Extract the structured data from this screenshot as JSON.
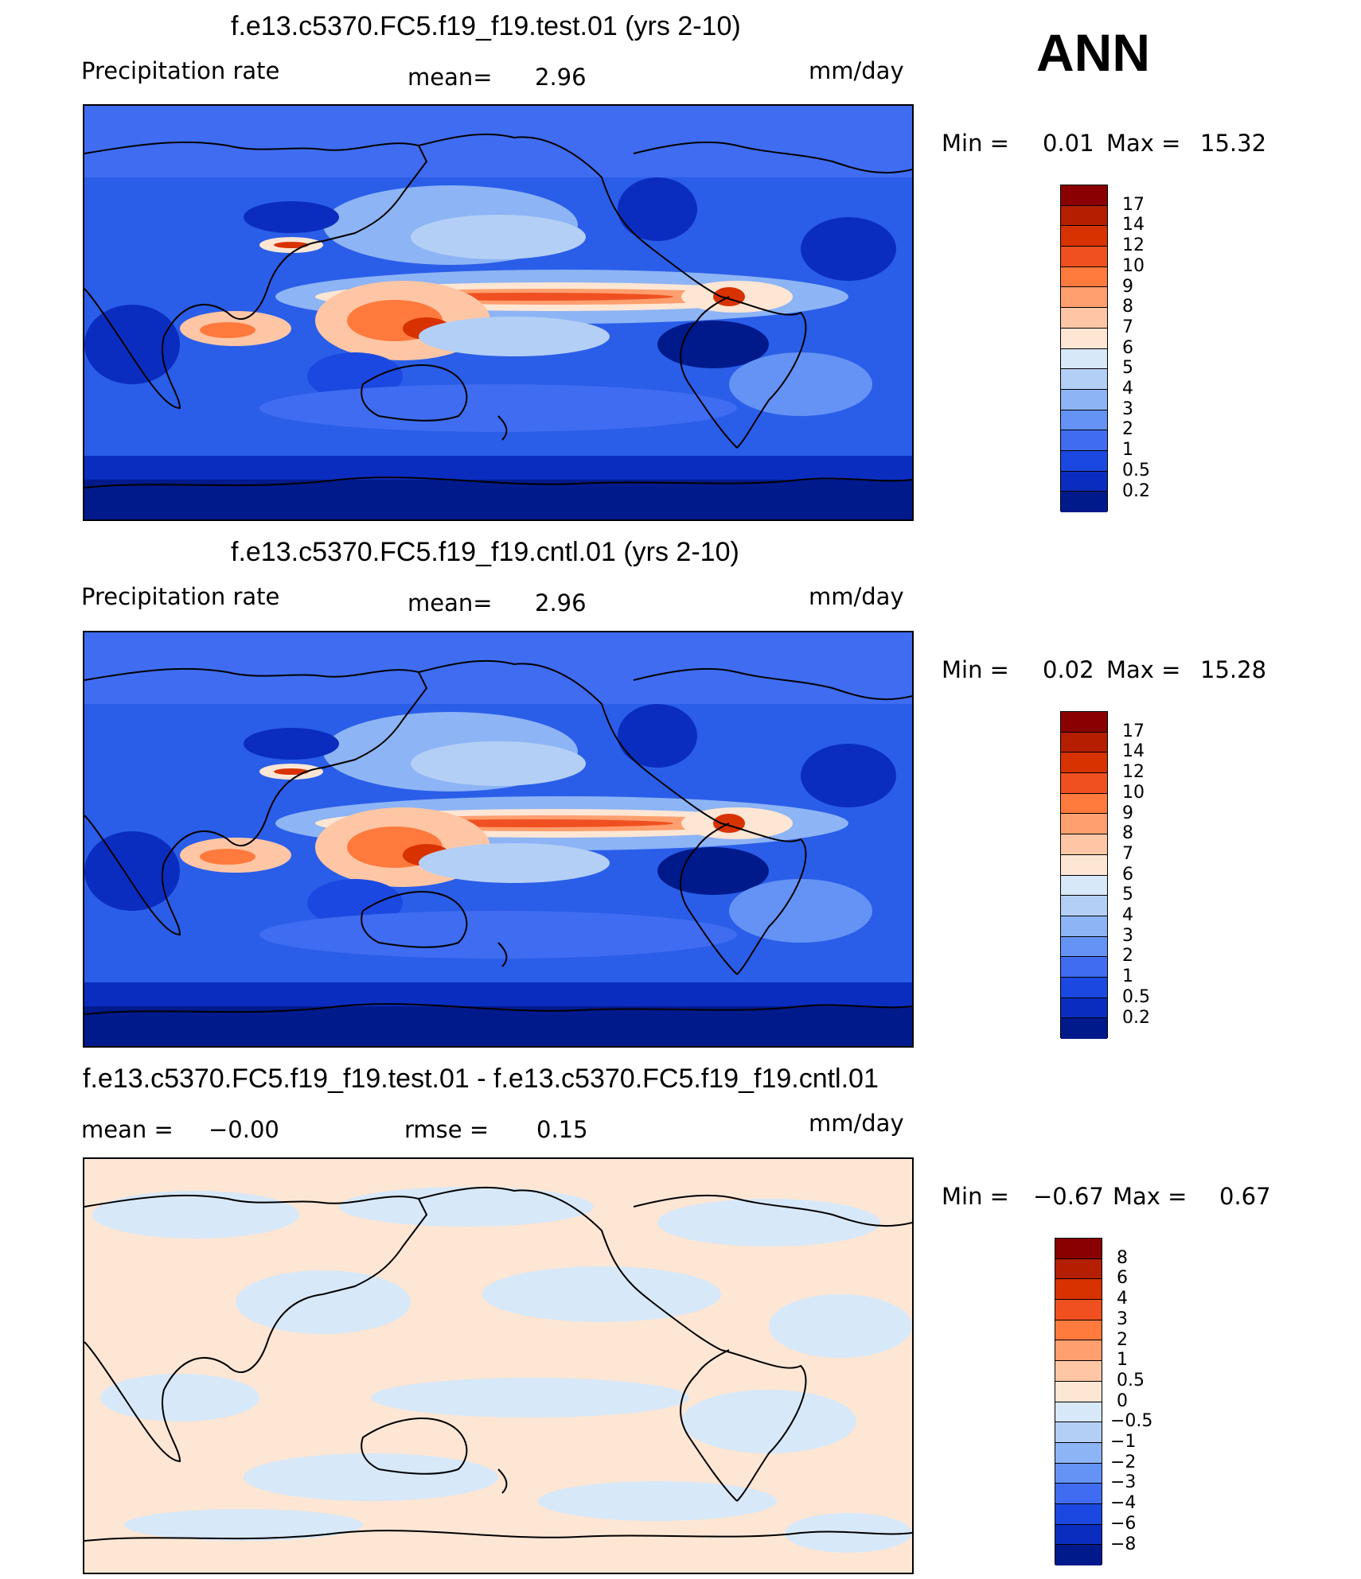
{
  "season": "ANN",
  "panels": [
    {
      "title": "f.e13.c5370.FC5.f19_f19.test.01 (yrs 2-10)",
      "left_label": "Precipitation  rate",
      "center_label": "mean=",
      "center_value": "2.96",
      "units": "mm/day",
      "min_label": "Min  =",
      "min_value": "0.01",
      "max_label": "Max  =",
      "max_value": "15.32"
    },
    {
      "title": "f.e13.c5370.FC5.f19_f19.cntl.01 (yrs 2-10)",
      "left_label": "Precipitation  rate",
      "center_label": "mean=",
      "center_value": "2.96",
      "units": "mm/day",
      "min_label": "Min  =",
      "min_value": "0.02",
      "max_label": "Max  =",
      "max_value": "15.28"
    },
    {
      "title": "f.e13.c5370.FC5.f19_f19.test.01 - f.e13.c5370.FC5.f19_f19.cntl.01",
      "left_label": "mean  =",
      "left_value": "−0.00",
      "center_label": "rmse  =",
      "center_value": "0.15",
      "units": "mm/day",
      "min_label": "Min  =",
      "min_value": "−0.67",
      "max_label": "Max  =",
      "max_value": "0.67"
    }
  ],
  "chart_data": [
    {
      "type": "heatmap",
      "title": "f.e13.c5370.FC5.f19_f19.test.01 (yrs 2-10)",
      "variable": "Precipitation rate",
      "units": "mm/day",
      "mean": 2.96,
      "min": 0.01,
      "max": 15.32,
      "colorbar_levels": [
        "17",
        "14",
        "12",
        "10",
        "9",
        "8",
        "7",
        "6",
        "5",
        "4",
        "3",
        "2",
        "1",
        "0.5",
        "0.2"
      ],
      "colorbar_colors": [
        "#8a0000",
        "#b51e00",
        "#d83200",
        "#f05020",
        "#ff7a3c",
        "#ff9e6e",
        "#ffc6a6",
        "#fde6d4",
        "#d7e8f8",
        "#b4cff5",
        "#8db4f5",
        "#6493f5",
        "#3f6cf0",
        "#1b48e0",
        "#0b2dbf",
        "#001a8c"
      ],
      "grid": false
    },
    {
      "type": "heatmap",
      "title": "f.e13.c5370.FC5.f19_f19.cntl.01 (yrs 2-10)",
      "variable": "Precipitation rate",
      "units": "mm/day",
      "mean": 2.96,
      "min": 0.02,
      "max": 15.28,
      "colorbar_levels": [
        "17",
        "14",
        "12",
        "10",
        "9",
        "8",
        "7",
        "6",
        "5",
        "4",
        "3",
        "2",
        "1",
        "0.5",
        "0.2"
      ],
      "colorbar_colors": [
        "#8a0000",
        "#b51e00",
        "#d83200",
        "#f05020",
        "#ff7a3c",
        "#ff9e6e",
        "#ffc6a6",
        "#fde6d4",
        "#d7e8f8",
        "#b4cff5",
        "#8db4f5",
        "#6493f5",
        "#3f6cf0",
        "#1b48e0",
        "#0b2dbf",
        "#001a8c"
      ],
      "grid": false
    },
    {
      "type": "heatmap",
      "title": "f.e13.c5370.FC5.f19_f19.test.01 - f.e13.c5370.FC5.f19_f19.cntl.01",
      "units": "mm/day",
      "mean": -0.0,
      "rmse": 0.15,
      "min": -0.67,
      "max": 0.67,
      "colorbar_levels": [
        "8",
        "6",
        "4",
        "3",
        "2",
        "1",
        "0.5",
        "0",
        "−0.5",
        "−1",
        "−2",
        "−3",
        "−4",
        "−6",
        "−8"
      ],
      "colorbar_colors": [
        "#8a0000",
        "#b51e00",
        "#d83200",
        "#f05020",
        "#ff7a3c",
        "#ff9e6e",
        "#ffc6a6",
        "#fde6d4",
        "#d7e8f8",
        "#b4cff5",
        "#8db4f5",
        "#6493f5",
        "#3f6cf0",
        "#1b48e0",
        "#0b2dbf",
        "#001a8c"
      ],
      "grid": false
    }
  ]
}
